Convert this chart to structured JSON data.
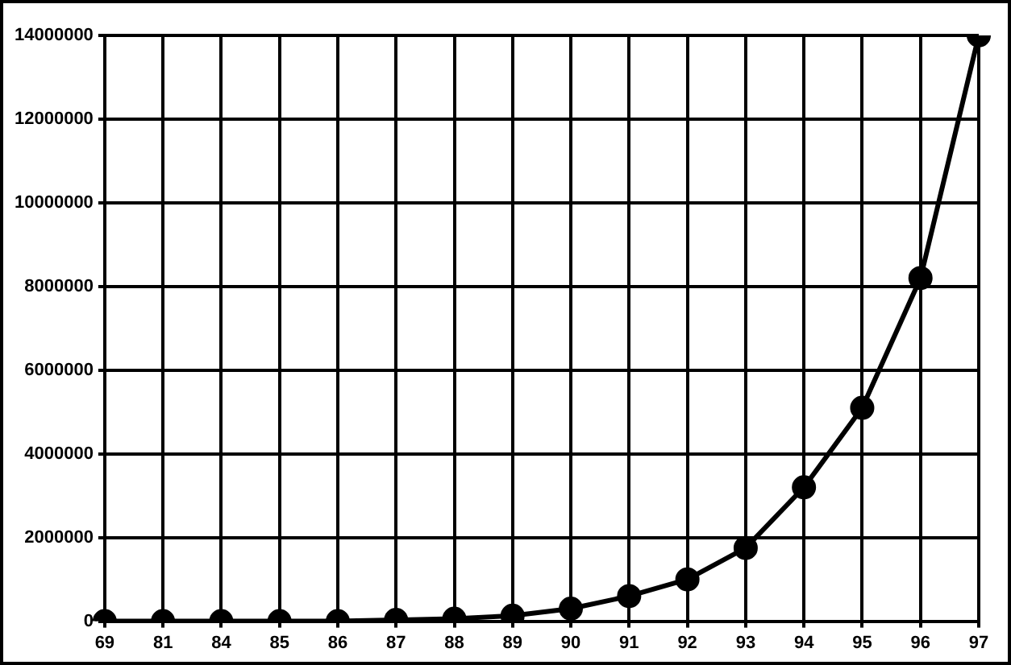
{
  "chart_data": {
    "type": "line",
    "categories": [
      "69",
      "81",
      "84",
      "85",
      "86",
      "87",
      "88",
      "89",
      "90",
      "91",
      "92",
      "93",
      "94",
      "95",
      "96",
      "97"
    ],
    "series": [
      {
        "color": "#000000",
        "values": [
          0,
          0,
          0,
          0,
          0,
          30000,
          60000,
          130000,
          300000,
          600000,
          1000000,
          1750000,
          3200000,
          5100000,
          8200000,
          14000000
        ]
      }
    ],
    "ylim": [
      0,
      14000000
    ],
    "yticks": [
      0,
      2000000,
      4000000,
      6000000,
      8000000,
      10000000,
      12000000,
      14000000
    ],
    "grid": true,
    "legend": false,
    "marker": "circle",
    "line_style": "solid"
  }
}
